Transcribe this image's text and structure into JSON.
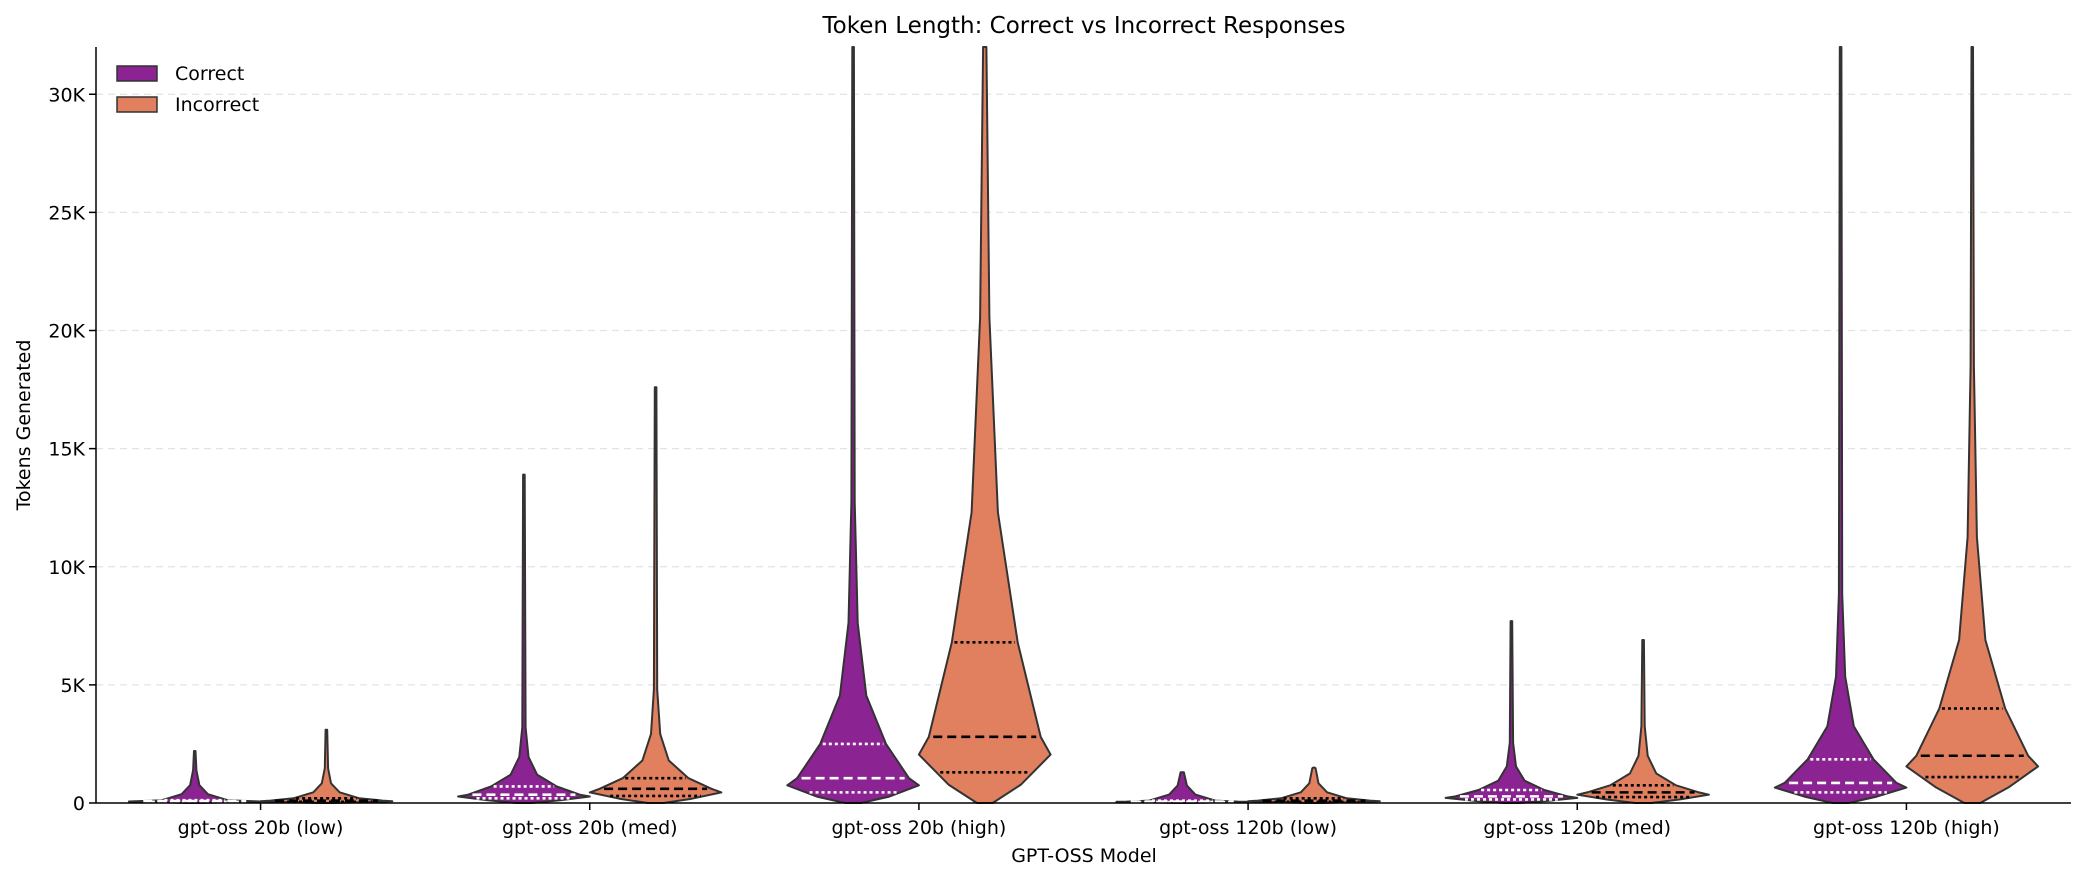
{
  "chart_data": {
    "type": "violin",
    "title": "Token Length: Correct vs Incorrect Responses",
    "xlabel": "GPT-OSS Model",
    "ylabel": "Tokens Generated",
    "ylim": [
      0,
      32000
    ],
    "yticks": [
      {
        "value": 0,
        "label": "0"
      },
      {
        "value": 5000,
        "label": "5K"
      },
      {
        "value": 10000,
        "label": "10K"
      },
      {
        "value": 15000,
        "label": "15K"
      },
      {
        "value": 20000,
        "label": "20K"
      },
      {
        "value": 25000,
        "label": "25K"
      },
      {
        "value": 30000,
        "label": "30K"
      }
    ],
    "grid": "y-dashed",
    "legend_position": "top-left",
    "colors": {
      "Correct": "#8b2392",
      "Incorrect": "#e0805f"
    },
    "categories": [
      "gpt-oss 20b (low)",
      "gpt-oss 20b (med)",
      "gpt-oss 20b (high)",
      "gpt-oss 120b (low)",
      "gpt-oss 120b (med)",
      "gpt-oss 120b (high)"
    ],
    "series": [
      {
        "name": "Correct",
        "stats": [
          {
            "min": 0,
            "q1": 50,
            "median": 80,
            "q3": 120,
            "max": 2200
          },
          {
            "min": 0,
            "q1": 200,
            "median": 350,
            "q3": 700,
            "max": 13900
          },
          {
            "min": 0,
            "q1": 450,
            "median": 1050,
            "q3": 2500,
            "max": 32000
          },
          {
            "min": 0,
            "q1": 40,
            "median": 60,
            "q3": 100,
            "max": 1300
          },
          {
            "min": 0,
            "q1": 150,
            "median": 280,
            "q3": 550,
            "max": 7700
          },
          {
            "min": 0,
            "q1": 450,
            "median": 850,
            "q3": 1850,
            "max": 32000
          }
        ]
      },
      {
        "name": "Incorrect",
        "stats": [
          {
            "min": 0,
            "q1": 50,
            "median": 100,
            "q3": 200,
            "max": 3100
          },
          {
            "min": 0,
            "q1": 300,
            "median": 600,
            "q3": 1050,
            "max": 17600
          },
          {
            "min": 0,
            "q1": 1300,
            "median": 2800,
            "q3": 6800,
            "max": 32000
          },
          {
            "min": 0,
            "q1": 50,
            "median": 100,
            "q3": 200,
            "max": 1500
          },
          {
            "min": 0,
            "q1": 250,
            "median": 450,
            "q3": 750,
            "max": 6900
          },
          {
            "min": 0,
            "q1": 1100,
            "median": 2000,
            "q3": 4000,
            "max": 32000
          }
        ]
      }
    ]
  }
}
